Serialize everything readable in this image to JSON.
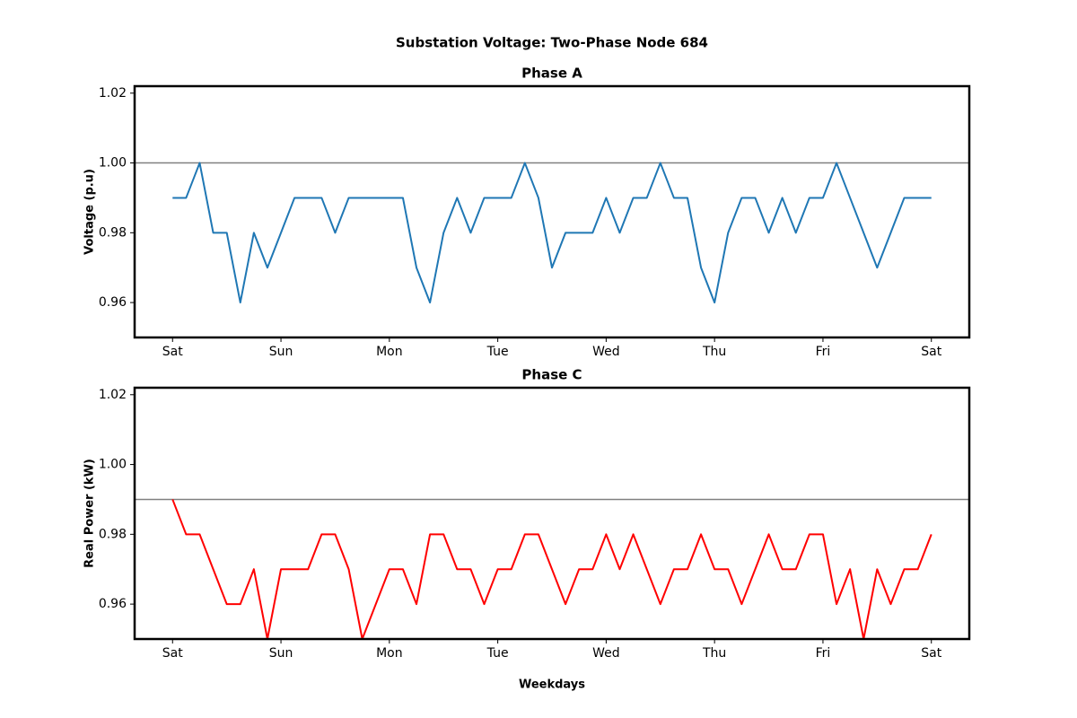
{
  "figure_title": "Substation Voltage: Two-Phase Node 684",
  "xlabel": "Weekdays",
  "chart_data": [
    {
      "type": "line",
      "title": "Phase A",
      "ylabel": "Voltage (p.u)",
      "x": [
        0,
        0.125,
        0.25,
        0.375,
        0.5,
        0.625,
        0.75,
        0.875,
        1,
        1.125,
        1.25,
        1.375,
        1.5,
        1.625,
        1.75,
        1.875,
        2,
        2.125,
        2.25,
        2.375,
        2.5,
        2.625,
        2.75,
        2.875,
        3,
        3.125,
        3.25,
        3.375,
        3.5,
        3.625,
        3.75,
        3.875,
        4,
        4.125,
        4.25,
        4.375,
        4.5,
        4.625,
        4.75,
        4.875,
        5,
        5.125,
        5.25,
        5.375,
        5.5,
        5.625,
        5.75,
        5.875,
        6,
        6.125,
        6.25,
        6.375,
        6.5,
        6.625,
        6.75,
        6.875,
        7
      ],
      "series": [
        {
          "name": "Phase A",
          "color": "#1f77b4",
          "values": [
            0.99,
            0.99,
            1.0,
            0.98,
            0.98,
            0.96,
            0.98,
            0.97,
            0.98,
            0.99,
            0.99,
            0.99,
            0.98,
            0.99,
            0.99,
            0.99,
            0.99,
            0.99,
            0.97,
            0.96,
            0.98,
            0.99,
            0.98,
            0.99,
            0.99,
            0.99,
            1.0,
            0.99,
            0.97,
            0.98,
            0.98,
            0.98,
            0.99,
            0.98,
            0.99,
            0.99,
            1.0,
            0.99,
            0.99,
            0.97,
            0.96,
            0.98,
            0.99,
            0.99,
            0.98,
            0.99,
            0.98,
            0.99,
            0.99,
            1.0,
            0.99,
            0.98,
            0.97,
            0.98,
            0.99,
            0.99,
            0.99
          ]
        }
      ],
      "hline": 1,
      "hline_color": "#808080",
      "xlim": [
        -0.35,
        7.35
      ],
      "xticks": [
        {
          "value": 0,
          "label": "Sat"
        },
        {
          "value": 1,
          "label": "Sun"
        },
        {
          "value": 2,
          "label": "Mon"
        },
        {
          "value": 3,
          "label": "Tue"
        },
        {
          "value": 4,
          "label": "Wed"
        },
        {
          "value": 5,
          "label": "Thu"
        },
        {
          "value": 6,
          "label": "Fri"
        },
        {
          "value": 7,
          "label": "Sat"
        }
      ],
      "ylim": [
        0.95,
        1.022
      ],
      "yticks": [
        0.96,
        0.98,
        {
          "value": 1,
          "label": "1.00"
        },
        1.02
      ]
    },
    {
      "type": "line",
      "title": "Phase C",
      "ylabel": "Real Power (kW)",
      "x": [
        0,
        0.125,
        0.25,
        0.375,
        0.5,
        0.625,
        0.75,
        0.875,
        1,
        1.125,
        1.25,
        1.375,
        1.5,
        1.625,
        1.75,
        1.875,
        2,
        2.125,
        2.25,
        2.375,
        2.5,
        2.625,
        2.75,
        2.875,
        3,
        3.125,
        3.25,
        3.375,
        3.5,
        3.625,
        3.75,
        3.875,
        4,
        4.125,
        4.25,
        4.375,
        4.5,
        4.625,
        4.75,
        4.875,
        5,
        5.125,
        5.25,
        5.375,
        5.5,
        5.625,
        5.75,
        5.875,
        6,
        6.125,
        6.25,
        6.375,
        6.5,
        6.625,
        6.75,
        6.875,
        7
      ],
      "series": [
        {
          "name": "Phase C",
          "color": "#ff0000",
          "values": [
            0.99,
            0.98,
            0.98,
            0.97,
            0.96,
            0.96,
            0.97,
            0.95,
            0.97,
            0.97,
            0.97,
            0.98,
            0.98,
            0.97,
            0.95,
            0.96,
            0.97,
            0.97,
            0.96,
            0.98,
            0.98,
            0.97,
            0.97,
            0.96,
            0.97,
            0.97,
            0.98,
            0.98,
            0.97,
            0.96,
            0.97,
            0.97,
            0.98,
            0.97,
            0.98,
            0.97,
            0.96,
            0.97,
            0.97,
            0.98,
            0.97,
            0.97,
            0.96,
            0.97,
            0.98,
            0.97,
            0.97,
            0.98,
            0.98,
            0.96,
            0.97,
            0.95,
            0.97,
            0.96,
            0.97,
            0.97,
            0.98
          ]
        }
      ],
      "hline": 0.99,
      "hline_color": "#808080",
      "xlim": [
        -0.35,
        7.35
      ],
      "xticks": [
        {
          "value": 0,
          "label": "Sat"
        },
        {
          "value": 1,
          "label": "Sun"
        },
        {
          "value": 2,
          "label": "Mon"
        },
        {
          "value": 3,
          "label": "Tue"
        },
        {
          "value": 4,
          "label": "Wed"
        },
        {
          "value": 5,
          "label": "Thu"
        },
        {
          "value": 6,
          "label": "Fri"
        },
        {
          "value": 7,
          "label": "Sat"
        }
      ],
      "ylim": [
        0.95,
        1.022
      ],
      "yticks": [
        0.96,
        0.98,
        {
          "value": 1,
          "label": "1.00"
        },
        1.02
      ]
    }
  ]
}
